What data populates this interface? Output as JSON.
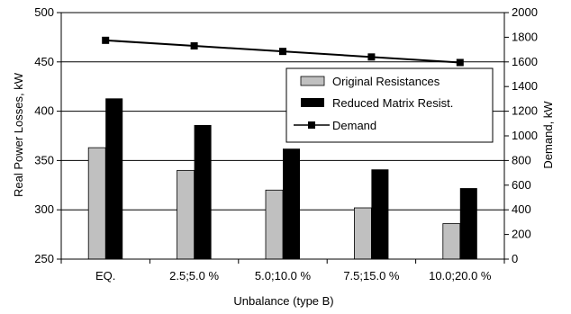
{
  "chart_data": {
    "type": "bar",
    "categories": [
      "EQ.",
      "2.5;5.0 %",
      "5.0;10.0 %",
      "7.5;15.0 %",
      "10.0;20.0 %"
    ],
    "series": [
      {
        "name": "Original Resistances",
        "type": "bar",
        "axis": "left",
        "color": "#c0c0c0",
        "values": [
          363,
          340,
          320,
          302,
          286
        ]
      },
      {
        "name": "Reduced Matrix Resist.",
        "type": "bar",
        "axis": "left",
        "color": "#000000",
        "values": [
          413,
          386,
          362,
          341,
          322
        ]
      },
      {
        "name": "Demand",
        "type": "line",
        "axis": "right",
        "color": "#000000",
        "marker": "square",
        "values": [
          1775,
          1730,
          1685,
          1640,
          1595
        ]
      }
    ],
    "xlabel": "Unbalance (type B)",
    "ylabel": "Real Power Losses, kW",
    "y2label": "Demand, kW",
    "ylim": [
      250,
      500
    ],
    "y2lim": [
      0,
      2000
    ],
    "yticks": [
      "250",
      "300",
      "350",
      "400",
      "450",
      "500"
    ],
    "y2ticks": [
      "0",
      "200",
      "400",
      "600",
      "800",
      "1000",
      "1200",
      "1400",
      "1600",
      "1800",
      "2000"
    ],
    "grid": true,
    "legend_position": "right"
  }
}
